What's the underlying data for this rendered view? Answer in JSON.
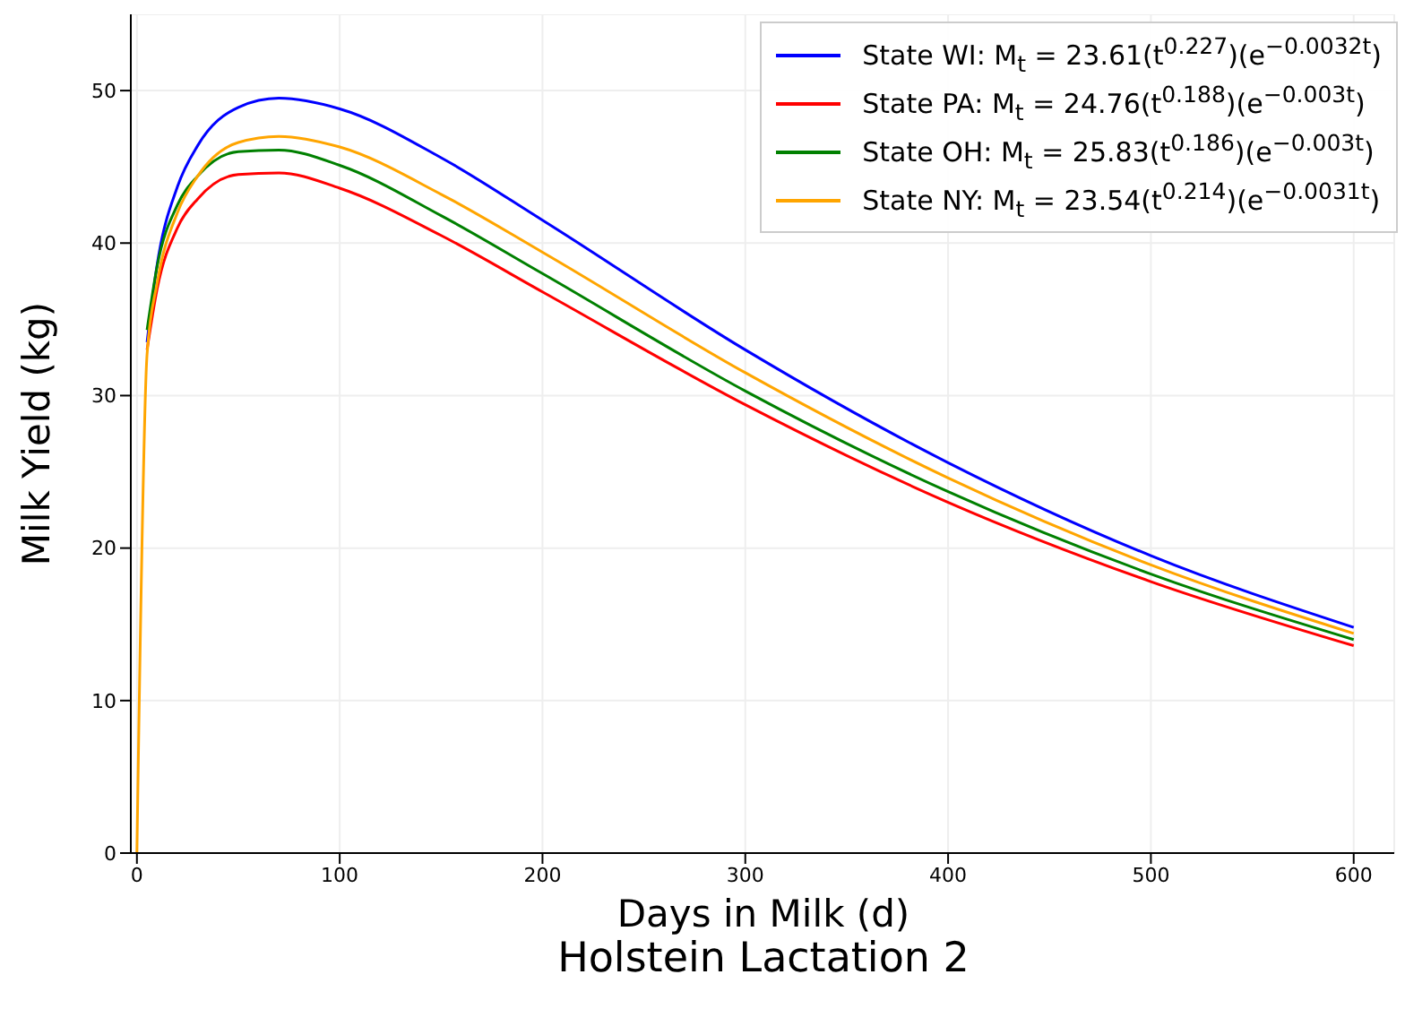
{
  "chart_data": {
    "type": "line",
    "title": "Holstein Lactation 2",
    "xlabel": "Days in Milk (d)",
    "ylabel": "Milk Yield (kg)",
    "x": [
      0,
      5,
      10,
      20,
      30,
      50,
      70,
      100,
      150,
      200,
      300,
      400,
      500,
      600
    ],
    "series": [
      {
        "name": "State WI: M$_{t}$ = 23.61(t$^{0.227}$)(e$^{−0.0032t}$)",
        "color": "#0000ff",
        "values": [
          null,
          33.5,
          38.6,
          43.7,
          46.4,
          48.9,
          49.5,
          48.8,
          45.6,
          41.5,
          33.0,
          25.6,
          19.5,
          14.8
        ]
      },
      {
        "name": "State PA: M$_{t}$ = 24.76(t$^{0.188}$)(e$^{−0.003t}$)",
        "color": "#ff0000",
        "values": [
          null,
          33.0,
          37.0,
          41.0,
          42.9,
          44.5,
          44.6,
          43.6,
          40.5,
          36.8,
          29.4,
          23.0,
          17.8,
          13.6
        ]
      },
      {
        "name": "State OH: M$_{t}$ = 25.83(t$^{0.186}$)(e$^{−0.003t}$)",
        "color": "#008000",
        "values": [
          null,
          34.3,
          38.5,
          42.5,
          44.4,
          46.0,
          46.1,
          45.1,
          41.8,
          38.0,
          30.3,
          23.7,
          18.3,
          14.0
        ]
      },
      {
        "name": "State NY: M$_{t}$ = 23.54(t$^{0.214}$)(e$^{−0.0031t}$)",
        "color": "#ffa500",
        "values": [
          0,
          32.7,
          37.4,
          42.0,
          44.4,
          46.6,
          47.0,
          46.3,
          43.2,
          39.4,
          31.5,
          24.6,
          18.9,
          14.4
        ]
      }
    ],
    "xlim": [
      -3,
      620
    ],
    "xticks": [
      0,
      100,
      200,
      300,
      400,
      500,
      600
    ],
    "ylim": [
      0,
      55
    ],
    "yticks": [
      0,
      10,
      20,
      30,
      40,
      50
    ],
    "grid": true,
    "legend": "top right",
    "marker": "none",
    "line_style": "solid"
  }
}
